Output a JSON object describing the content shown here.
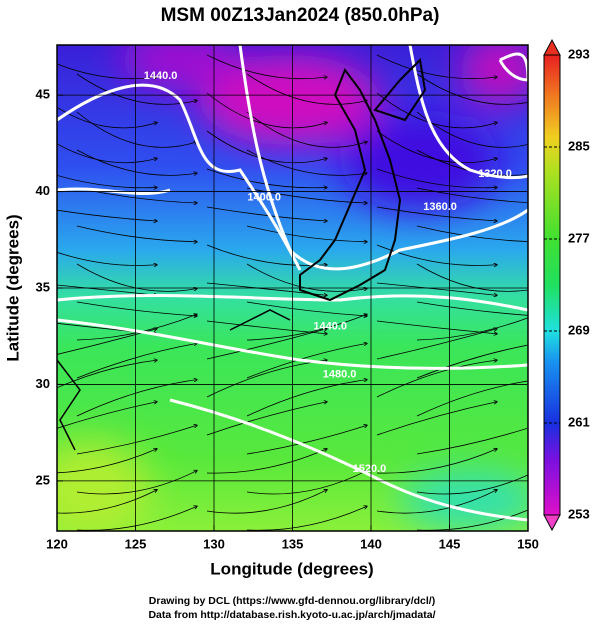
{
  "title": "MSM 00Z13Jan2024 (850.0hPa)",
  "map": {
    "xlabel": "Longitude (degrees)",
    "ylabel": "Latitude  (degrees)",
    "xlim": [
      120,
      150
    ],
    "ylim": [
      22.4,
      47.6
    ],
    "xticks": [
      120,
      125,
      130,
      135,
      140,
      145,
      150
    ],
    "yticks": [
      25,
      30,
      35,
      40,
      45
    ],
    "grid": true,
    "contour_labels": [
      {
        "text": "1440.0",
        "lon": 126.6,
        "lat": 46.0
      },
      {
        "text": "1400.0",
        "lon": 133.2,
        "lat": 39.7
      },
      {
        "text": "1360.0",
        "lon": 144.4,
        "lat": 39.2
      },
      {
        "text": "1320.0",
        "lon": 147.9,
        "lat": 40.9
      },
      {
        "text": "1440.0",
        "lon": 137.4,
        "lat": 33.0
      },
      {
        "text": "1480.0",
        "lon": 138.0,
        "lat": 30.5
      },
      {
        "text": "1520.0",
        "lon": 139.9,
        "lat": 25.6
      }
    ]
  },
  "colorbar": {
    "lim": [
      253,
      293
    ],
    "ticks": [
      253,
      261,
      269,
      277,
      285,
      293
    ]
  },
  "credits": [
    "Drawing by DCL (https://www.gfd-dennou.org/library/dcl/)",
    "Data from http://database.rish.kyoto-u.ac.jp/arch/jmadata/"
  ]
}
